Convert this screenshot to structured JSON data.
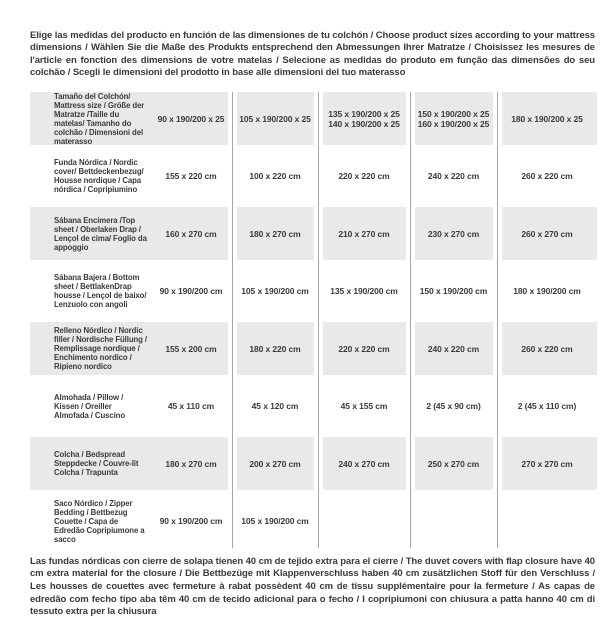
{
  "intro": {
    "text": "Elige las medidas del producto en función de las dimensiones de tu colchón / Choose product sizes according to your mattress dimensions / Wählen Sie die Maße des Produkts entsprechend den Abmessungen Ihrer Matratze / Choisissez les mesures de l'article en fonction des dimensions de votre matelas / Selecione as medidas do produto em função das dimensões do seu colchão / Scegli le dimensioni del prodotto in base alle dimensioni del tuo materasso"
  },
  "footnote": {
    "text": "Las fundas nórdicas con cierre de solapa tienen 40 cm de tejido extra para el cierre / The duvet covers with flap closure have 40 cm extra material for the closure / Die Bettbezüge mit Klappenverschluss haben 40 cm zusätzlichen Stoff für den Verschluss / Les housses de couettes avec fermeture à rabat possèdent 40 cm de tissu supplémentaire pour la fermeture / As capas de edredão com fecho tipo aba têm 40 cm de tecido adicional para o fecho / I copripiumoni con chiusura a patta hanno 40 cm di tessuto extra per la chiusura"
  },
  "colors": {
    "row_shade": "#e9e9e9",
    "divider_line": "#a6a6a6",
    "text": "#3a3a3a",
    "background": "#ffffff"
  },
  "table": {
    "rows": [
      {
        "label": "Tamaño del Colchón/ Mattress size / Größe der Matratze /Taille du matelas/ Tamanho do colchão / Dimensioni del materasso",
        "values": [
          "90 x 190/200 x 25",
          "105 x 190/200 x 25",
          "135 x 190/200 x 25\n140 x 190/200 x 25",
          "150 x 190/200 x 25\n160 x 190/200 x 25",
          "180 x 190/200 x 25"
        ]
      },
      {
        "label": "Funda Nórdica / Nordic cover/ Bettdeckenbezug/ Housse nordique / Capa nórdica / Copripiumino",
        "values": [
          "155 x 220 cm",
          "100 x 220 cm",
          "220 x 220 cm",
          "240 x 220 cm",
          "260 x 220 cm"
        ]
      },
      {
        "label": "Sábana Encimera /Top sheet / Oberlaken Drap / Lençol de cima/ Foglio da appoggio",
        "values": [
          "160 x 270 cm",
          "180 x 270 cm",
          "210 x 270 cm",
          "230 x 270 cm",
          "260 x 270 cm"
        ]
      },
      {
        "label": "Sábana Bajera / Bottom sheet / BettlakenDrap housse / Lençol de baixo/ Lenzuolo con angoli",
        "values": [
          "90 x 190/200 cm",
          "105 x 190/200 cm",
          "135 x 190/200 cm",
          "150 x 190/200 cm",
          "180 x 190/200 cm"
        ]
      },
      {
        "label": "Relleno Nórdico / Nordic filler / Nordische Füllung / Remplissage nordique / Enchimento nordico / Ripieno nordico",
        "values": [
          "155 x 200 cm",
          "180 x 220 cm",
          "220 x 220 cm",
          "240 x 220 cm",
          "260 x 220 cm"
        ]
      },
      {
        "label": "Almohada / Pillow / Kissen / Oreiller Almofada / Cuscino",
        "values": [
          "45 x 110 cm",
          "45 x 120 cm",
          "45 x 155 cm",
          "2 (45 x 90 cm)",
          "2 (45 x 110 cm)"
        ]
      },
      {
        "label": "Colcha / Bedspread Steppdecke / Couvre-lit Colcha / Trapunta",
        "values": [
          "180 x 270 cm",
          "200 x 270 cm",
          "240 x 270 cm",
          "250 x 270 cm",
          "270 x 270 cm"
        ]
      },
      {
        "label": "Saco Nórdico / Zipper Bedding / Bettbezug Couette / Capa de Edredão Copripiumone a sacco",
        "values": [
          "90 x 190/200 cm",
          "105 x 190/200 cm",
          "",
          "",
          ""
        ]
      }
    ]
  }
}
